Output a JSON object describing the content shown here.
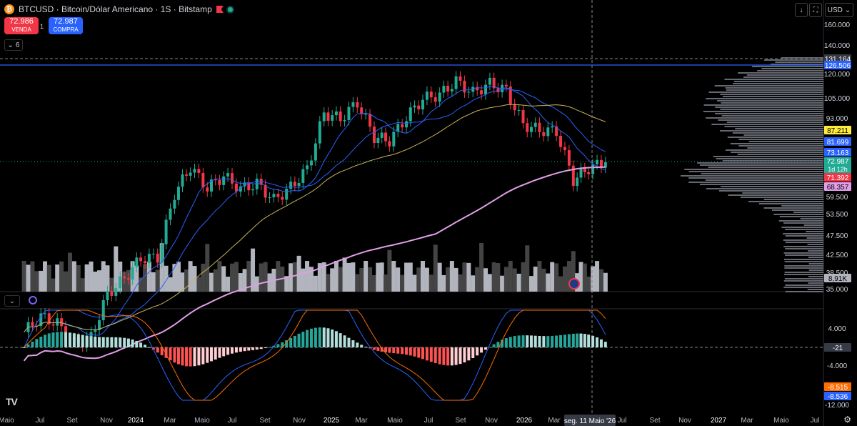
{
  "header": {
    "symbol": "BTCUSD · Bitcoin/Dólar Americano · 1S · Bitstamp",
    "sell_price": "72.986",
    "sell_label": "VENDA",
    "spread": "1",
    "buy_price": "72.987",
    "buy_label": "COMPRA",
    "legend_count": "6",
    "currency": "USD",
    "colors": {
      "sell": "#f23645",
      "buy": "#2962ff",
      "coin": "#f7931a"
    }
  },
  "chart_data": {
    "type": "line",
    "title": "",
    "xlabel": "",
    "ylabel": "",
    "y_scale": "log",
    "grid": false,
    "x_labels": [
      "Maio",
      "Jul",
      "Set",
      "Nov",
      "2024",
      "Mar",
      "Maio",
      "Jul",
      "Set",
      "Nov",
      "2025",
      "Mar",
      "Maio",
      "Jul",
      "Set",
      "Nov",
      "2026",
      "Mar",
      "Jul",
      "Set",
      "Nov",
      "2027",
      "Mar",
      "Maio",
      "Jul"
    ],
    "y_ticks": [
      "160.000",
      "140.000",
      "120.000",
      "105.000",
      "93.000",
      "81.699",
      "59.500",
      "53.500",
      "47.500",
      "42.500",
      "38.500",
      "35.000"
    ],
    "crosshair_date": "seg. 11 Maio '26",
    "close_series": [
      {
        "date": "2023-05",
        "close": 27800
      },
      {
        "date": "2023-06",
        "close": 30400
      },
      {
        "date": "2023-07",
        "close": 29200
      },
      {
        "date": "2023-08",
        "close": 26000
      },
      {
        "date": "2023-09",
        "close": 27000
      },
      {
        "date": "2023-10",
        "close": 34500
      },
      {
        "date": "2023-11",
        "close": 37700
      },
      {
        "date": "2023-12",
        "close": 42300
      },
      {
        "date": "2024-01",
        "close": 42500
      },
      {
        "date": "2024-02",
        "close": 61000
      },
      {
        "date": "2024-03",
        "close": 71000
      },
      {
        "date": "2024-04",
        "close": 63000
      },
      {
        "date": "2024-05",
        "close": 67500
      },
      {
        "date": "2024-06",
        "close": 62700
      },
      {
        "date": "2024-07",
        "close": 64600
      },
      {
        "date": "2024-08",
        "close": 58900
      },
      {
        "date": "2024-09",
        "close": 63300
      },
      {
        "date": "2024-10",
        "close": 70200
      },
      {
        "date": "2024-11",
        "close": 96400
      },
      {
        "date": "2024-12",
        "close": 93400
      },
      {
        "date": "2025-01",
        "close": 102400
      },
      {
        "date": "2025-02",
        "close": 84300
      },
      {
        "date": "2025-03",
        "close": 82500
      },
      {
        "date": "2025-04",
        "close": 94200
      },
      {
        "date": "2025-05",
        "close": 104600
      },
      {
        "date": "2025-06",
        "close": 107100
      },
      {
        "date": "2025-07",
        "close": 115700
      },
      {
        "date": "2025-08",
        "close": 108200
      },
      {
        "date": "2025-09",
        "close": 114000
      },
      {
        "date": "2025-10",
        "close": 109600
      },
      {
        "date": "2025-11",
        "close": 90500
      },
      {
        "date": "2025-12",
        "close": 87500
      },
      {
        "date": "2026-01",
        "close": 87000
      },
      {
        "date": "2026-02",
        "close": 66000
      },
      {
        "date": "2026-03",
        "close": 70500
      },
      {
        "date": "2026-04",
        "close": 72987
      }
    ],
    "moving_average_levels": {
      "ma_yellow": "87.211",
      "ma_blue_1": "81.699",
      "ma_blue_2": "73.163",
      "ma_pink": "68.357"
    },
    "current_price": "72.987",
    "countdown": "1d 12h",
    "low_label": "71.392",
    "crosshair_price": "131.164",
    "horizontal_line": "126.506",
    "volume_label": "8,91K",
    "macd": {
      "y_ticks": [
        "4.000",
        "-4.000",
        "-12.000"
      ],
      "crosshair_value": "-21",
      "macd_value": "-8.515",
      "signal_value": "-8.536"
    },
    "colors": {
      "up": "#22ab94",
      "down": "#f23645",
      "ma_yellow": "#c9b458",
      "ma_blue": "#2962ff",
      "ma_pink": "#e19ee6",
      "hline": "#2962ff",
      "macd_line": "#2962ff",
      "signal_line": "#ff6d00",
      "volume": "#b2b5be",
      "volume_dark": "#444"
    }
  }
}
